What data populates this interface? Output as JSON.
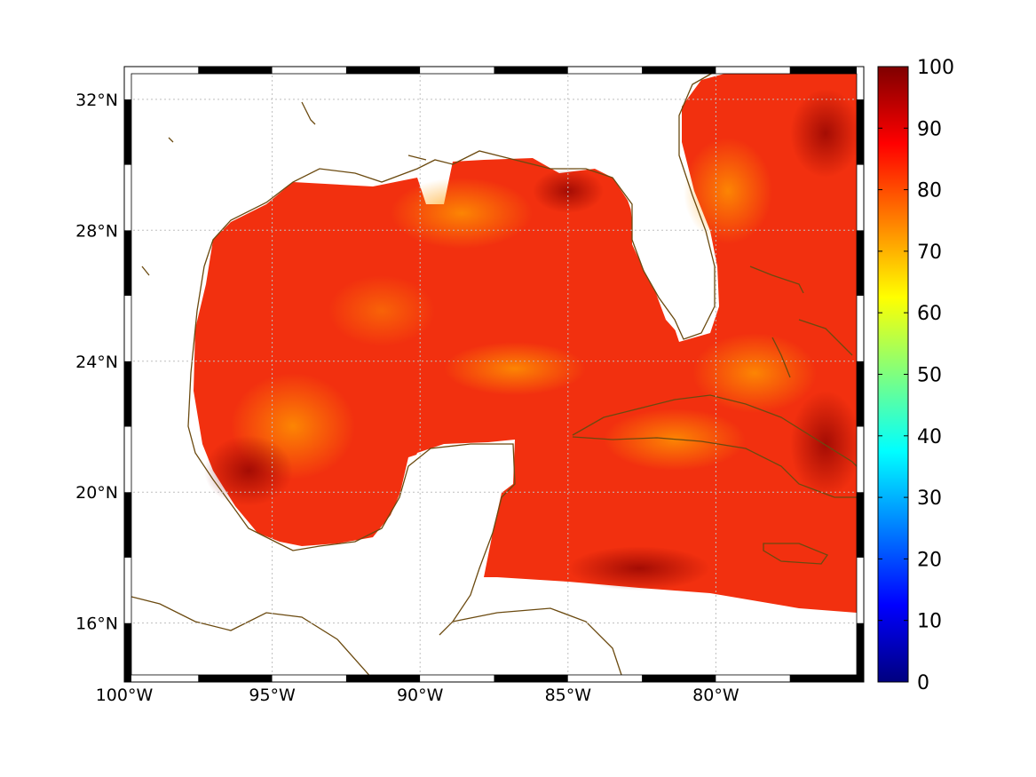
{
  "map": {
    "region": "Gulf of Mexico and Caribbean",
    "lon_range": [
      -100,
      -75
    ],
    "lat_range": [
      14.2,
      33
    ],
    "lon_ticks": [
      {
        "value": -100,
        "label": "100°W"
      },
      {
        "value": -95,
        "label": "95°W"
      },
      {
        "value": -90,
        "label": "90°W"
      },
      {
        "value": -85,
        "label": "85°W"
      },
      {
        "value": -80,
        "label": "80°W"
      }
    ],
    "lat_ticks": [
      {
        "value": 16,
        "label": "16°N"
      },
      {
        "value": 20,
        "label": "20°N"
      },
      {
        "value": 24,
        "label": "24°N"
      },
      {
        "value": 28,
        "label": "28°N"
      },
      {
        "value": 32,
        "label": "32°N"
      }
    ],
    "field_range": [
      70,
      100
    ],
    "field_typical": 85,
    "colors": {
      "land_fill": "#ffffff",
      "coastline": "#6b4a10",
      "grid": "#bfbfbf"
    }
  },
  "colorbar": {
    "min": 0,
    "max": 100,
    "ticks": [
      "0",
      "10",
      "20",
      "30",
      "40",
      "50",
      "60",
      "70",
      "80",
      "90",
      "100"
    ],
    "colormap": "jet",
    "stops": [
      "#00007f",
      "#0000ff",
      "#007fff",
      "#00ffff",
      "#7fff7f",
      "#ffff00",
      "#ff7f00",
      "#ff0000",
      "#7f0000"
    ]
  }
}
